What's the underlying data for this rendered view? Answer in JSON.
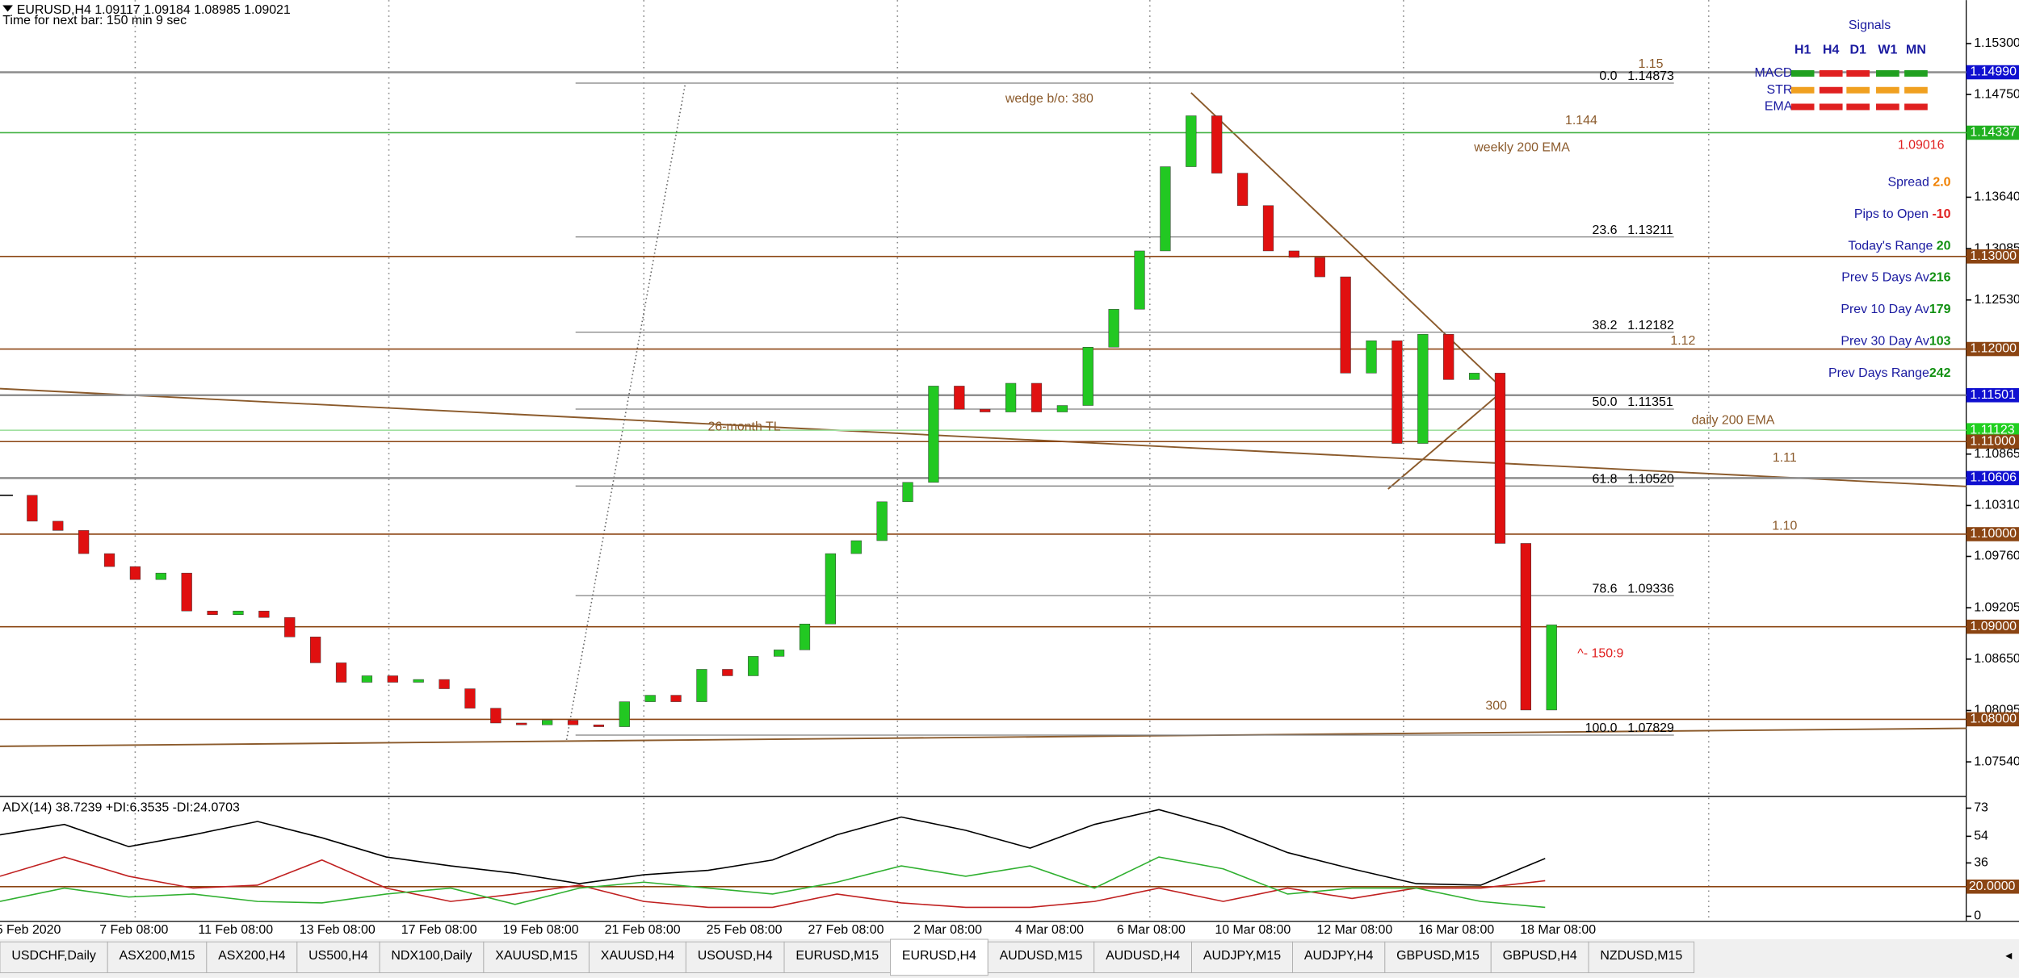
{
  "header": {
    "symbol_line": "EURUSD,H4  1.09117 1.09184 1.08985 1.09021",
    "timer": "Time for next bar: 150 min 9 sec"
  },
  "chart": {
    "ylim": [
      1.0718,
      1.157
    ],
    "price_ticks": [
      {
        "value": 1.153,
        "label": "1.15300"
      },
      {
        "value": 1.1475,
        "label": "1.14750"
      },
      {
        "value": 1.1364,
        "label": "1.13640"
      },
      {
        "value": 1.13085,
        "label": "1.13085"
      },
      {
        "value": 1.1253,
        "label": "1.12530"
      },
      {
        "value": 1.10865,
        "label": "1.10865"
      },
      {
        "value": 1.1031,
        "label": "1.10310"
      },
      {
        "value": 1.0976,
        "label": "1.09760"
      },
      {
        "value": 1.09205,
        "label": "1.09205"
      },
      {
        "value": 1.0865,
        "label": "1.08650"
      },
      {
        "value": 1.08095,
        "label": "1.08095"
      },
      {
        "value": 1.0754,
        "label": "1.07540"
      }
    ],
    "levels": [
      {
        "value": 1.1499,
        "label": "1.14990",
        "color": "#1010d0",
        "line": "#909090"
      },
      {
        "value": 1.14337,
        "label": "1.14337",
        "color": "#20b020",
        "line": "#40b040"
      },
      {
        "value": 1.13,
        "label": "1.13000",
        "color": "#8b4513",
        "line": "#8b4513"
      },
      {
        "value": 1.12,
        "label": "1.12000",
        "color": "#8b4513",
        "line": "#8b4513"
      },
      {
        "value": 1.11501,
        "label": "1.11501",
        "color": "#1010d0",
        "line": "#909090"
      },
      {
        "value": 1.11123,
        "label": "1.11123",
        "color": "#20d020",
        "line": "#a0e0a0"
      },
      {
        "value": 1.11,
        "label": "1.11000",
        "color": "#8b4513",
        "line": "#8b4513"
      },
      {
        "value": 1.10606,
        "label": "1.10606",
        "color": "#1010d0",
        "line": "#909090"
      },
      {
        "value": 1.1,
        "label": "1.10000",
        "color": "#8b4513",
        "line": "#8b4513"
      },
      {
        "value": 1.09,
        "label": "1.09000",
        "color": "#8b4513",
        "line": "#8b4513"
      },
      {
        "value": 1.08,
        "label": "1.08000",
        "color": "#8b4513",
        "line": "#8b4513"
      }
    ],
    "fib": [
      {
        "level": "0.0",
        "price": 1.14873,
        "label": "1.14873"
      },
      {
        "level": "23.6",
        "price": 1.13211,
        "label": "1.13211"
      },
      {
        "level": "38.2",
        "price": 1.12182,
        "label": "1.12182"
      },
      {
        "level": "50.0",
        "price": 1.11351,
        "label": "1.11351"
      },
      {
        "level": "61.8",
        "price": 1.1052,
        "label": "1.10520"
      },
      {
        "level": "78.6",
        "price": 1.09336,
        "label": "1.09336"
      },
      {
        "level": "100.0",
        "price": 1.07829,
        "label": "1.07829"
      }
    ],
    "annotations": [
      {
        "text": "1.15",
        "color": "#8b5a2b"
      },
      {
        "text": "1.144",
        "color": "#8b5a2b"
      },
      {
        "text": "wedge b/o: 380",
        "color": "#8b5a2b"
      },
      {
        "text": "weekly 200 EMA",
        "color": "#8b5a2b"
      },
      {
        "text": "1.12",
        "color": "#8b5a2b"
      },
      {
        "text": "daily 200 EMA",
        "color": "#8b5a2b"
      },
      {
        "text": "1.11",
        "color": "#8b5a2b"
      },
      {
        "text": "1.10",
        "color": "#8b5a2b"
      },
      {
        "text": "26-month TL",
        "color": "#8b5a2b"
      },
      {
        "text": "^- 150:9",
        "color": "#e02020"
      },
      {
        "text": "300",
        "color": "#8b5a2b"
      }
    ],
    "up_color": "#22c822",
    "down_color": "#e01010",
    "closes": [
      1.1042,
      1.1014,
      1.1004,
      1.0979,
      1.0965,
      1.0951,
      1.0958,
      1.0917,
      1.0913,
      1.0917,
      1.091,
      1.0889,
      1.0861,
      1.084,
      1.0847,
      1.084,
      1.0843,
      1.0833,
      1.0812,
      1.0796,
      1.0794,
      1.0799,
      1.0794,
      1.0792,
      1.0819,
      1.0826,
      1.0819,
      1.0854,
      1.0847,
      1.0868,
      1.0875,
      1.0903,
      1.0979,
      1.0993,
      1.1035,
      1.1056,
      1.116,
      1.1135,
      1.1132,
      1.1163,
      1.1132,
      1.1139,
      1.1202,
      1.1243,
      1.1306,
      1.1397,
      1.1452,
      1.139,
      1.1355,
      1.1306,
      1.1299,
      1.1278,
      1.1174,
      1.1209,
      1.1098,
      1.1216,
      1.1167,
      1.1174,
      1.099,
      1.081,
      1.0902
    ],
    "x_labels": [
      "5 Feb 2020",
      "7 Feb 08:00",
      "11 Feb 08:00",
      "13 Feb 08:00",
      "17 Feb 08:00",
      "19 Feb 08:00",
      "21 Feb 08:00",
      "25 Feb 08:00",
      "27 Feb 08:00",
      "2 Mar 08:00",
      "4 Mar 08:00",
      "6 Mar 08:00",
      "10 Mar 08:00",
      "12 Mar 08:00",
      "16 Mar 08:00",
      "18 Mar 08:00"
    ]
  },
  "adx": {
    "title": "ADX(14) 38.7239 +DI:6.3535 -DI:24.0703",
    "ylim": [
      -3.4,
      80
    ],
    "yticks": [
      73,
      54,
      36,
      {
        "value": 20,
        "label": "20.0000"
      },
      0
    ],
    "series": [
      {
        "name": "ADX",
        "color": "#000000",
        "values": [
          55,
          62,
          47,
          55,
          64,
          53,
          40,
          34,
          29,
          22,
          28,
          31,
          38,
          55,
          67,
          58,
          46,
          62,
          72,
          60,
          43,
          32,
          22,
          21,
          39
        ]
      },
      {
        "name": "-DI",
        "color": "#c02020",
        "values": [
          27,
          40,
          27,
          19,
          21,
          38,
          19,
          10,
          15,
          21,
          10,
          6,
          6,
          15,
          9,
          6,
          6,
          10,
          19,
          10,
          19,
          12,
          19,
          19,
          24
        ]
      },
      {
        "name": "+DI",
        "color": "#30b030",
        "values": [
          10,
          19,
          13,
          15,
          10,
          9,
          15,
          19,
          8,
          19,
          23,
          19,
          15,
          23,
          34,
          27,
          34,
          19,
          40,
          32,
          15,
          19,
          19,
          10,
          6
        ]
      }
    ]
  },
  "signals": {
    "title": "Signals",
    "columns": [
      "H1",
      "H4",
      "D1",
      "W1",
      "MN"
    ],
    "rows": [
      {
        "name": "MACD",
        "colors": [
          "#20a020",
          "#e02020",
          "#e02020",
          "#20a020",
          "#20a020"
        ]
      },
      {
        "name": "STR",
        "colors": [
          "#f0a020",
          "#e02020",
          "#f0a020",
          "#f0a020",
          "#f0a020"
        ]
      },
      {
        "name": "EMA",
        "colors": [
          "#e02020",
          "#e02020",
          "#e02020",
          "#e02020",
          "#e02020"
        ]
      }
    ],
    "price": "1.09016",
    "stats": [
      {
        "label": "Spread ",
        "value": "2.0",
        "color": "#f08000"
      },
      {
        "label": "Pips to Open ",
        "value": "-10",
        "color": "#e02020"
      },
      {
        "label": "Today's Range  ",
        "value": "20",
        "color": "#109010"
      },
      {
        "label": "Prev 5 Days Av",
        "value": "216",
        "color": "#109010"
      },
      {
        "label": "Prev 10 Day Av",
        "value": "179",
        "color": "#109010"
      },
      {
        "label": "Prev 30 Day Av",
        "value": "103",
        "color": "#109010"
      },
      {
        "label": "Prev Days Range",
        "value": "242",
        "color": "#109010"
      }
    ]
  },
  "tabs": {
    "items": [
      "USDCHF,Daily",
      "ASX200,M15",
      "ASX200,H4",
      "US500,H4",
      "NDX100,Daily",
      "XAUUSD,M15",
      "XAUUSD,H4",
      "USOUSD,H4",
      "EURUSD,M15",
      "EURUSD,H4",
      "AUDUSD,M15",
      "AUDUSD,H4",
      "AUDJPY,M15",
      "AUDJPY,H4",
      "GBPUSD,M15",
      "GBPUSD,H4",
      "NZDUSD,M15"
    ],
    "active": 9
  }
}
